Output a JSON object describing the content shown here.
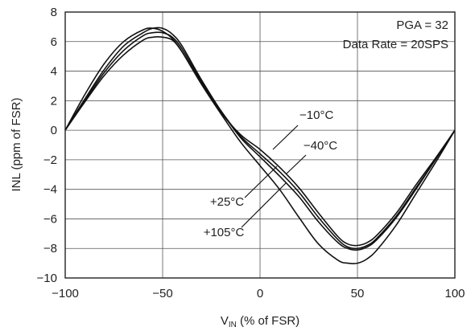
{
  "chart_data": {
    "type": "line",
    "xlabel": "V",
    "xlabel_sub": "IN",
    "xlabel_rest": " (% of FSR)",
    "ylabel": "INL (ppm of FSR)",
    "xlim": [
      -100,
      100
    ],
    "ylim": [
      -10,
      8
    ],
    "xticks": [
      "-100",
      "-50",
      "0",
      "50",
      "100"
    ],
    "yticks": [
      "8",
      "6",
      "4",
      "2",
      "0",
      "-2",
      "-4",
      "-6",
      "-8",
      "-10"
    ],
    "grid": true,
    "annotations": {
      "conditions": [
        "PGA = 32",
        "Data Rate = 20SPS"
      ]
    },
    "series": [
      {
        "name": "-10°C",
        "x": [
          -100,
          -90,
          -80,
          -70,
          -60,
          -55,
          -50,
          -45,
          -40,
          -30,
          -20,
          -10,
          0,
          10,
          20,
          30,
          40,
          45,
          50,
          55,
          60,
          70,
          80,
          90,
          100
        ],
        "y": [
          0,
          1.9,
          3.7,
          5.1,
          6.1,
          6.3,
          6.3,
          6.1,
          5.3,
          3.2,
          1.2,
          -0.3,
          -1.3,
          -2.5,
          -3.9,
          -5.6,
          -7.2,
          -7.7,
          -7.8,
          -7.6,
          -7.1,
          -5.6,
          -3.7,
          -1.9,
          0
        ]
      },
      {
        "name": "-40°C",
        "x": [
          -100,
          -90,
          -80,
          -70,
          -60,
          -55,
          -50,
          -45,
          -40,
          -30,
          -20,
          -10,
          0,
          10,
          20,
          30,
          40,
          45,
          50,
          55,
          60,
          70,
          80,
          90,
          100
        ],
        "y": [
          0,
          2.0,
          3.9,
          5.4,
          6.4,
          6.6,
          6.6,
          6.3,
          5.5,
          3.3,
          1.3,
          -0.4,
          -1.6,
          -2.8,
          -4.2,
          -5.9,
          -7.4,
          -7.9,
          -8.0,
          -7.8,
          -7.3,
          -5.8,
          -3.9,
          -2.0,
          0
        ]
      },
      {
        "name": "+25°C",
        "x": [
          -100,
          -90,
          -80,
          -70,
          -60,
          -55,
          -50,
          -45,
          -40,
          -30,
          -20,
          -10,
          0,
          10,
          20,
          30,
          40,
          45,
          50,
          55,
          60,
          70,
          80,
          90,
          100
        ],
        "y": [
          0,
          2.1,
          4.1,
          5.7,
          6.6,
          6.9,
          6.9,
          6.5,
          5.7,
          3.4,
          1.3,
          -0.5,
          -1.8,
          -3.1,
          -4.5,
          -6.2,
          -7.6,
          -8.0,
          -8.1,
          -7.9,
          -7.4,
          -5.9,
          -4.0,
          -2.0,
          0
        ]
      },
      {
        "name": "+105°C",
        "x": [
          -100,
          -90,
          -80,
          -70,
          -60,
          -55,
          -50,
          -45,
          -40,
          -30,
          -20,
          -10,
          0,
          10,
          20,
          30,
          40,
          45,
          50,
          55,
          60,
          70,
          80,
          90,
          100
        ],
        "y": [
          0,
          2.4,
          4.5,
          6.0,
          6.8,
          6.9,
          6.7,
          6.2,
          5.3,
          3.1,
          1.1,
          -0.8,
          -2.4,
          -4.0,
          -5.9,
          -7.7,
          -8.8,
          -9.0,
          -9.0,
          -8.7,
          -8.1,
          -6.4,
          -4.3,
          -2.2,
          0
        ]
      }
    ]
  }
}
